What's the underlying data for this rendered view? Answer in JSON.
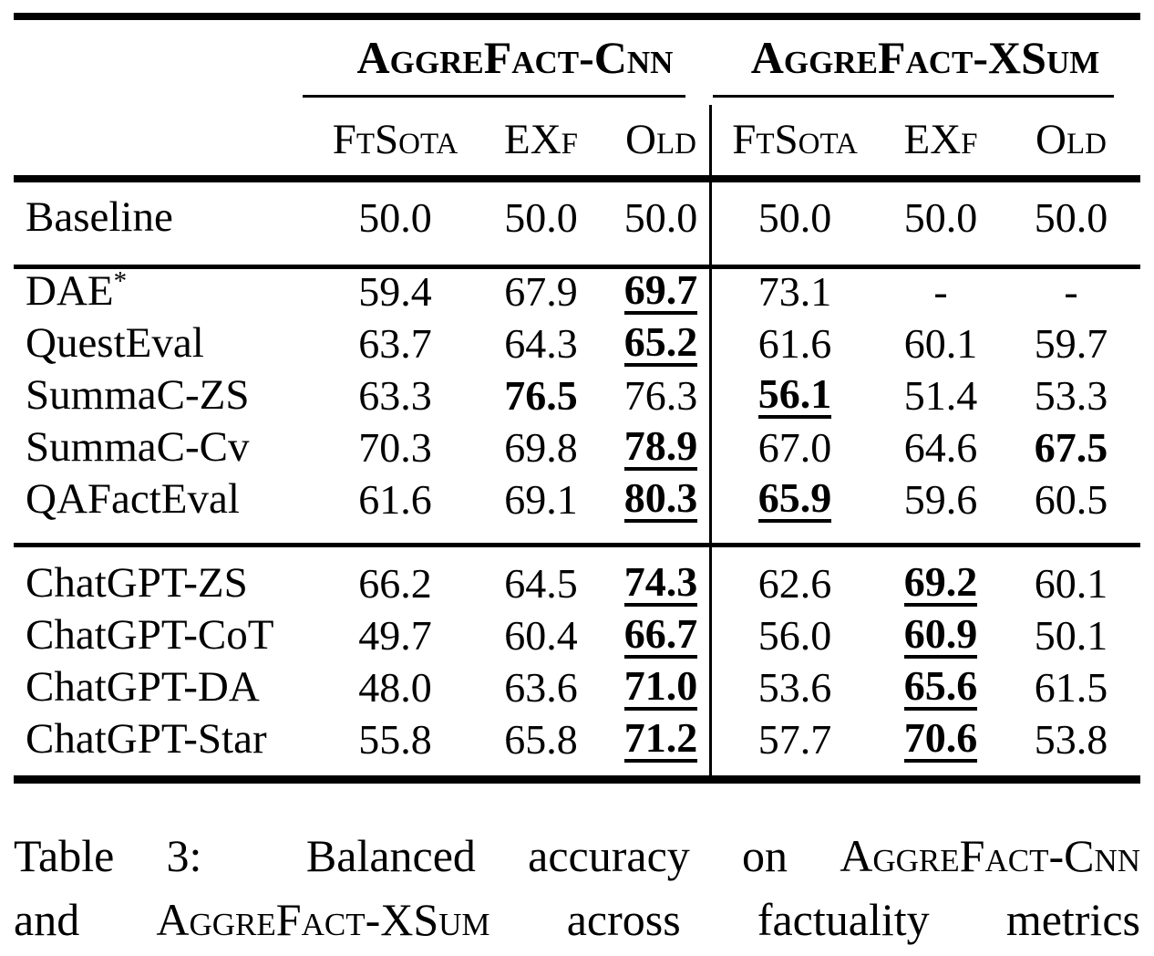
{
  "colors": {
    "text": "#000000",
    "background": "#ffffff"
  },
  "table": {
    "group_headers": [
      "AggreFact-Cnn",
      "AggreFact-XSum"
    ],
    "sub_headers": [
      "FtSota",
      "EXf",
      "Old",
      "FtSota",
      "EXf",
      "Old"
    ],
    "sections": [
      {
        "rows": [
          {
            "label": "Baseline",
            "sup": "",
            "cells": [
              {
                "v": "50.0"
              },
              {
                "v": "50.0"
              },
              {
                "v": "50.0"
              },
              {
                "v": "50.0"
              },
              {
                "v": "50.0"
              },
              {
                "v": "50.0"
              }
            ]
          }
        ]
      },
      {
        "rows": [
          {
            "label": "DAE",
            "sup": "*",
            "cells": [
              {
                "v": "59.4"
              },
              {
                "v": "67.9"
              },
              {
                "v": "69.7",
                "bold": true,
                "underline": true
              },
              {
                "v": "73.1"
              },
              {
                "v": "-"
              },
              {
                "v": "-"
              }
            ]
          },
          {
            "label": "QuestEval",
            "sup": "",
            "cells": [
              {
                "v": "63.7"
              },
              {
                "v": "64.3"
              },
              {
                "v": "65.2",
                "bold": true,
                "underline": true
              },
              {
                "v": "61.6"
              },
              {
                "v": "60.1"
              },
              {
                "v": "59.7"
              }
            ]
          },
          {
            "label": "SummaC-ZS",
            "sup": "",
            "cells": [
              {
                "v": "63.3"
              },
              {
                "v": "76.5",
                "bold": true
              },
              {
                "v": "76.3"
              },
              {
                "v": "56.1",
                "bold": true,
                "underline": true
              },
              {
                "v": "51.4"
              },
              {
                "v": "53.3"
              }
            ]
          },
          {
            "label": "SummaC-Cv",
            "sup": "",
            "cells": [
              {
                "v": "70.3"
              },
              {
                "v": "69.8"
              },
              {
                "v": "78.9",
                "bold": true,
                "underline": true
              },
              {
                "v": "67.0"
              },
              {
                "v": "64.6"
              },
              {
                "v": "67.5",
                "bold": true
              }
            ]
          },
          {
            "label": "QAFactEval",
            "sup": "",
            "cells": [
              {
                "v": "61.6"
              },
              {
                "v": "69.1"
              },
              {
                "v": "80.3",
                "bold": true,
                "underline": true
              },
              {
                "v": "65.9",
                "bold": true,
                "underline": true
              },
              {
                "v": "59.6"
              },
              {
                "v": "60.5"
              }
            ]
          }
        ]
      },
      {
        "rows": [
          {
            "label": "ChatGPT-ZS",
            "sup": "",
            "cells": [
              {
                "v": "66.2"
              },
              {
                "v": "64.5"
              },
              {
                "v": "74.3",
                "bold": true,
                "underline": true
              },
              {
                "v": "62.6"
              },
              {
                "v": "69.2",
                "bold": true,
                "underline": true
              },
              {
                "v": "60.1"
              }
            ]
          },
          {
            "label": "ChatGPT-CoT",
            "sup": "",
            "cells": [
              {
                "v": "49.7"
              },
              {
                "v": "60.4"
              },
              {
                "v": "66.7",
                "bold": true,
                "underline": true
              },
              {
                "v": "56.0"
              },
              {
                "v": "60.9",
                "bold": true,
                "underline": true
              },
              {
                "v": "50.1"
              }
            ]
          },
          {
            "label": "ChatGPT-DA",
            "sup": "",
            "cells": [
              {
                "v": "48.0"
              },
              {
                "v": "63.6"
              },
              {
                "v": "71.0",
                "bold": true,
                "underline": true
              },
              {
                "v": "53.6"
              },
              {
                "v": "65.6",
                "bold": true,
                "underline": true
              },
              {
                "v": "61.5"
              }
            ]
          },
          {
            "label": "ChatGPT-Star",
            "sup": "",
            "cells": [
              {
                "v": "55.8"
              },
              {
                "v": "65.8"
              },
              {
                "v": "71.2",
                "bold": true,
                "underline": true
              },
              {
                "v": "57.7"
              },
              {
                "v": "70.6",
                "bold": true,
                "underline": true
              },
              {
                "v": "53.8"
              }
            ]
          }
        ]
      }
    ]
  },
  "caption": {
    "lines": [
      [
        {
          "t": "Table 3:  Balanced accuracy on "
        },
        {
          "t": "AggreFact-Cnn",
          "sc": true
        }
      ],
      [
        {
          "t": "and "
        },
        {
          "t": "AggreFact-XSum",
          "sc": true
        },
        {
          "t": " across factuality metrics"
        }
      ]
    ]
  }
}
